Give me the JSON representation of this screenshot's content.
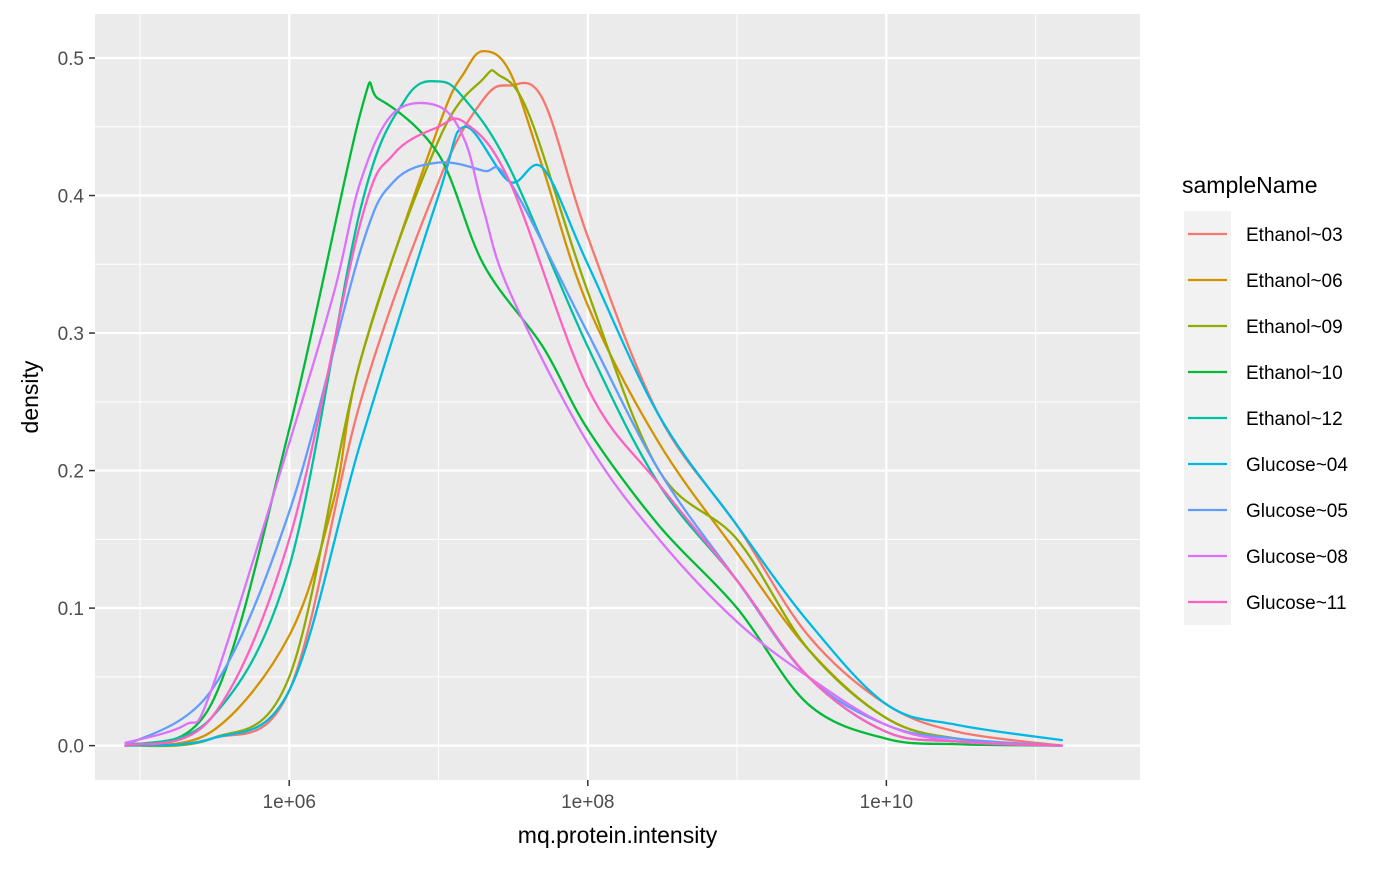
{
  "chart_data": {
    "type": "line",
    "title": "",
    "xlabel": "mq.protein.intensity",
    "ylabel": "density",
    "x_scale": "log10",
    "x_tick_labels": [
      "1e+06",
      "1e+08",
      "1e+10"
    ],
    "x_tick_values": [
      1000000,
      100000000,
      10000000000
    ],
    "xlim": [
      50000,
      500000000000
    ],
    "y_tick_labels": [
      "0.0",
      "0.1",
      "0.2",
      "0.3",
      "0.4",
      "0.5"
    ],
    "y_tick_values": [
      0,
      0.1,
      0.2,
      0.3,
      0.4,
      0.5
    ],
    "ylim": [
      -0.025,
      0.532
    ],
    "grid": true,
    "legend": {
      "title": "sampleName",
      "position": "right"
    },
    "series": [
      {
        "name": "Ethanol~03",
        "color": "#F8766D",
        "x": [
          80000,
          300000,
          1000000,
          3000000,
          10000000,
          20000000,
          30000000,
          50000000,
          100000000,
          300000000,
          1000000000,
          3000000000,
          10000000000,
          30000000000,
          150000000000
        ],
        "y": [
          0.0,
          0.005,
          0.04,
          0.25,
          0.41,
          0.47,
          0.48,
          0.47,
          0.37,
          0.24,
          0.16,
          0.08,
          0.03,
          0.01,
          0.0
        ]
      },
      {
        "name": "Ethanol~06",
        "color": "#D39200",
        "x": [
          80000,
          300000,
          1000000,
          2000000,
          3000000,
          10000000,
          15000000,
          20000000,
          30000000,
          50000000,
          100000000,
          300000000,
          1000000000,
          3000000000,
          10000000000,
          30000000000,
          150000000000
        ],
        "y": [
          0.0,
          0.01,
          0.08,
          0.18,
          0.28,
          0.45,
          0.49,
          0.505,
          0.49,
          0.42,
          0.32,
          0.22,
          0.14,
          0.07,
          0.02,
          0.005,
          0.0
        ]
      },
      {
        "name": "Ethanol~09",
        "color": "#93AA00",
        "x": [
          80000,
          300000,
          1000000,
          3000000,
          10000000,
          20000000,
          25000000,
          40000000,
          100000000,
          300000000,
          1000000000,
          3000000000,
          10000000000,
          30000000000,
          150000000000
        ],
        "y": [
          0.0,
          0.005,
          0.05,
          0.28,
          0.44,
          0.485,
          0.488,
          0.46,
          0.33,
          0.2,
          0.15,
          0.07,
          0.02,
          0.005,
          0.0
        ]
      },
      {
        "name": "Ethanol~10",
        "color": "#00BA38",
        "x": [
          80000,
          300000,
          1000000,
          3000000,
          4000000,
          10000000,
          20000000,
          50000000,
          100000000,
          300000000,
          1000000000,
          3000000000,
          10000000000,
          30000000000,
          150000000000
        ],
        "y": [
          0.0,
          0.03,
          0.23,
          0.46,
          0.47,
          0.43,
          0.35,
          0.29,
          0.23,
          0.16,
          0.1,
          0.03,
          0.005,
          0.001,
          0.0
        ]
      },
      {
        "name": "Ethanol~12",
        "color": "#00C19F",
        "x": [
          80000,
          300000,
          1000000,
          3000000,
          6000000,
          10000000,
          15000000,
          30000000,
          100000000,
          300000000,
          1000000000,
          3000000000,
          10000000000,
          30000000000,
          150000000000
        ],
        "y": [
          0.0,
          0.02,
          0.13,
          0.39,
          0.47,
          0.483,
          0.47,
          0.42,
          0.29,
          0.19,
          0.12,
          0.05,
          0.01,
          0.003,
          0.0
        ]
      },
      {
        "name": "Glucose~04",
        "color": "#00B9E3",
        "x": [
          80000,
          300000,
          1000000,
          3000000,
          10000000,
          15000000,
          30000000,
          50000000,
          100000000,
          300000000,
          1000000000,
          3000000000,
          10000000000,
          30000000000,
          150000000000
        ],
        "y": [
          0.0,
          0.005,
          0.04,
          0.22,
          0.4,
          0.45,
          0.41,
          0.42,
          0.35,
          0.24,
          0.16,
          0.09,
          0.03,
          0.015,
          0.004
        ]
      },
      {
        "name": "Glucose~05",
        "color": "#619CFF",
        "x": [
          80000,
          300000,
          1000000,
          3000000,
          5000000,
          10000000,
          20000000,
          30000000,
          100000000,
          300000000,
          1000000000,
          3000000000,
          10000000000,
          30000000000,
          150000000000
        ],
        "y": [
          0.0,
          0.04,
          0.17,
          0.36,
          0.41,
          0.424,
          0.418,
          0.41,
          0.3,
          0.2,
          0.12,
          0.05,
          0.015,
          0.005,
          0.0
        ]
      },
      {
        "name": "Glucose~08",
        "color": "#DB72FB",
        "x": [
          80000,
          200000,
          300000,
          1000000,
          2000000,
          3000000,
          5000000,
          10000000,
          15000000,
          20000000,
          30000000,
          100000000,
          300000000,
          1000000000,
          3000000000,
          10000000000,
          30000000000,
          150000000000
        ],
        "y": [
          0.002,
          0.015,
          0.04,
          0.22,
          0.33,
          0.41,
          0.46,
          0.465,
          0.44,
          0.39,
          0.33,
          0.22,
          0.15,
          0.09,
          0.05,
          0.015,
          0.003,
          0.0
        ]
      },
      {
        "name": "Glucose~11",
        "color": "#FF61C3",
        "x": [
          80000,
          300000,
          1000000,
          3000000,
          5000000,
          10000000,
          15000000,
          30000000,
          100000000,
          300000000,
          1000000000,
          3000000000,
          10000000000,
          30000000000,
          150000000000
        ],
        "y": [
          0.0,
          0.02,
          0.15,
          0.38,
          0.43,
          0.45,
          0.453,
          0.41,
          0.26,
          0.19,
          0.12,
          0.05,
          0.01,
          0.003,
          0.0
        ]
      }
    ]
  }
}
